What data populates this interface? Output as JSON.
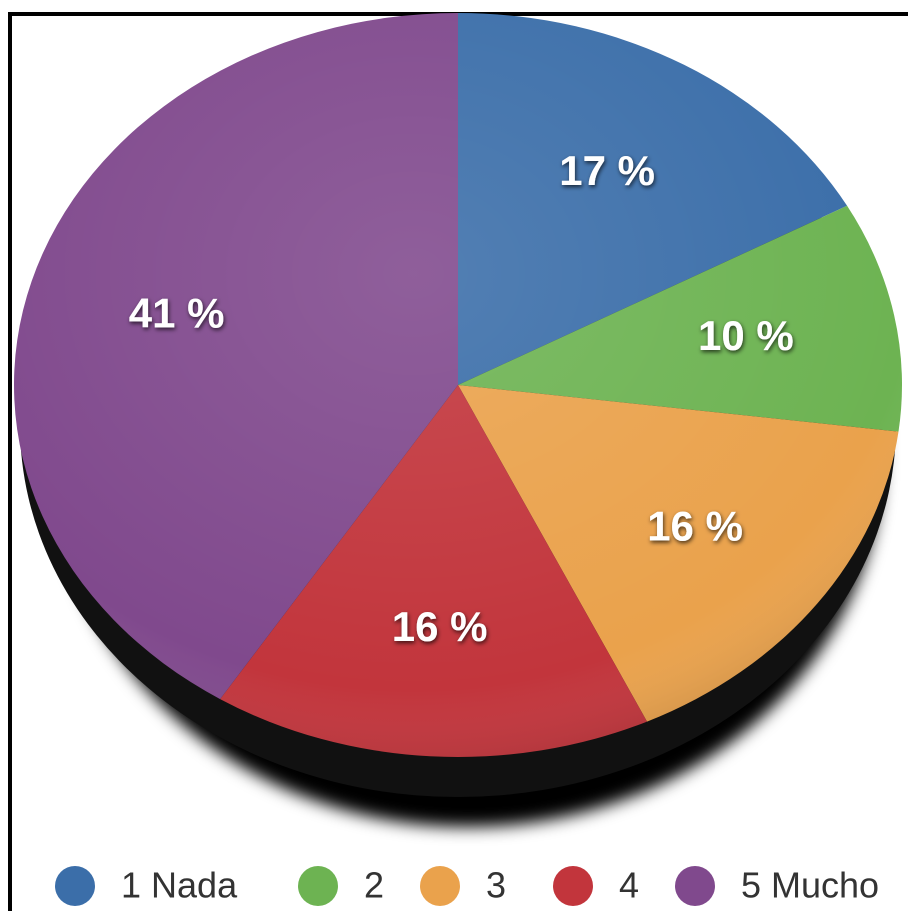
{
  "chart_data": {
    "type": "pie",
    "categories": [
      "1 Nada",
      "2",
      "3",
      "4",
      "5 Mucho"
    ],
    "values": [
      17,
      10,
      16,
      16,
      41
    ],
    "value_labels": [
      "17 %",
      "10 %",
      "16 %",
      "16 %",
      "41 %"
    ],
    "colors": [
      "#3b6ea9",
      "#6db352",
      "#eaa24c",
      "#c2353c",
      "#80498d"
    ],
    "legend": "bottom"
  }
}
